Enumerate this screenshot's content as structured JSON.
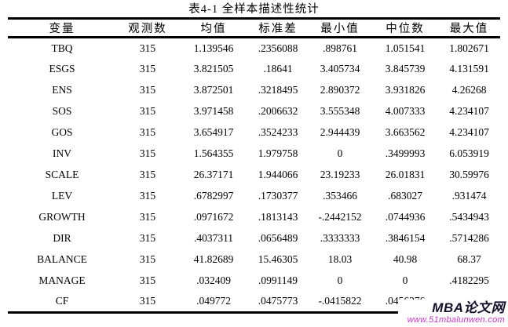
{
  "page": {
    "title": "表4-1 全样本描述性统计"
  },
  "table": {
    "columns": [
      "变量",
      "观测数",
      "均值",
      "标准差",
      "最小值",
      "中位数",
      "最大值"
    ],
    "rows": [
      [
        "TBQ",
        "315",
        "1.139546",
        ".2356088",
        ".898761",
        "1.051541",
        "1.802671"
      ],
      [
        "ESGS",
        "315",
        "3.821505",
        ".18641",
        "3.405734",
        "3.845739",
        "4.131591"
      ],
      [
        "ENS",
        "315",
        "3.872501",
        ".3218495",
        "2.890372",
        "3.931826",
        "4.26268"
      ],
      [
        "SOS",
        "315",
        "3.971458",
        ".2006632",
        "3.555348",
        "4.007333",
        "4.234107"
      ],
      [
        "GOS",
        "315",
        "3.654917",
        ".3524233",
        "2.944439",
        "3.663562",
        "4.234107"
      ],
      [
        "INV",
        "315",
        "1.564355",
        "1.979758",
        "0",
        ".3499993",
        "6.053919"
      ],
      [
        "SCALE",
        "315",
        "26.37171",
        "1.944066",
        "23.19233",
        "26.01831",
        "30.59976"
      ],
      [
        "LEV",
        "315",
        ".6782997",
        ".1730377",
        ".353466",
        ".683027",
        ".931474"
      ],
      [
        "GROWTH",
        "315",
        ".0971672",
        ".1813143",
        "-.2442152",
        ".0744936",
        ".5434943"
      ],
      [
        "DIR",
        "315",
        ".4037311",
        ".0656489",
        ".3333333",
        ".3846154",
        ".5714286"
      ],
      [
        "BALANCE",
        "315",
        "41.82689",
        "15.46305",
        "18.03",
        "40.98",
        "68.37"
      ],
      [
        "MANAGE",
        "315",
        ".032409",
        ".0991149",
        "0",
        "0",
        ".4182295"
      ],
      [
        "CF",
        "315",
        ".049772",
        ".0475773",
        "-.0415822",
        ".0456376",
        ""
      ]
    ]
  },
  "watermark": {
    "site_name": "MBA论文网",
    "site_url": "www.51mbalunwen.com",
    "name_color": "#17112d",
    "url_color": "#c935c9"
  }
}
